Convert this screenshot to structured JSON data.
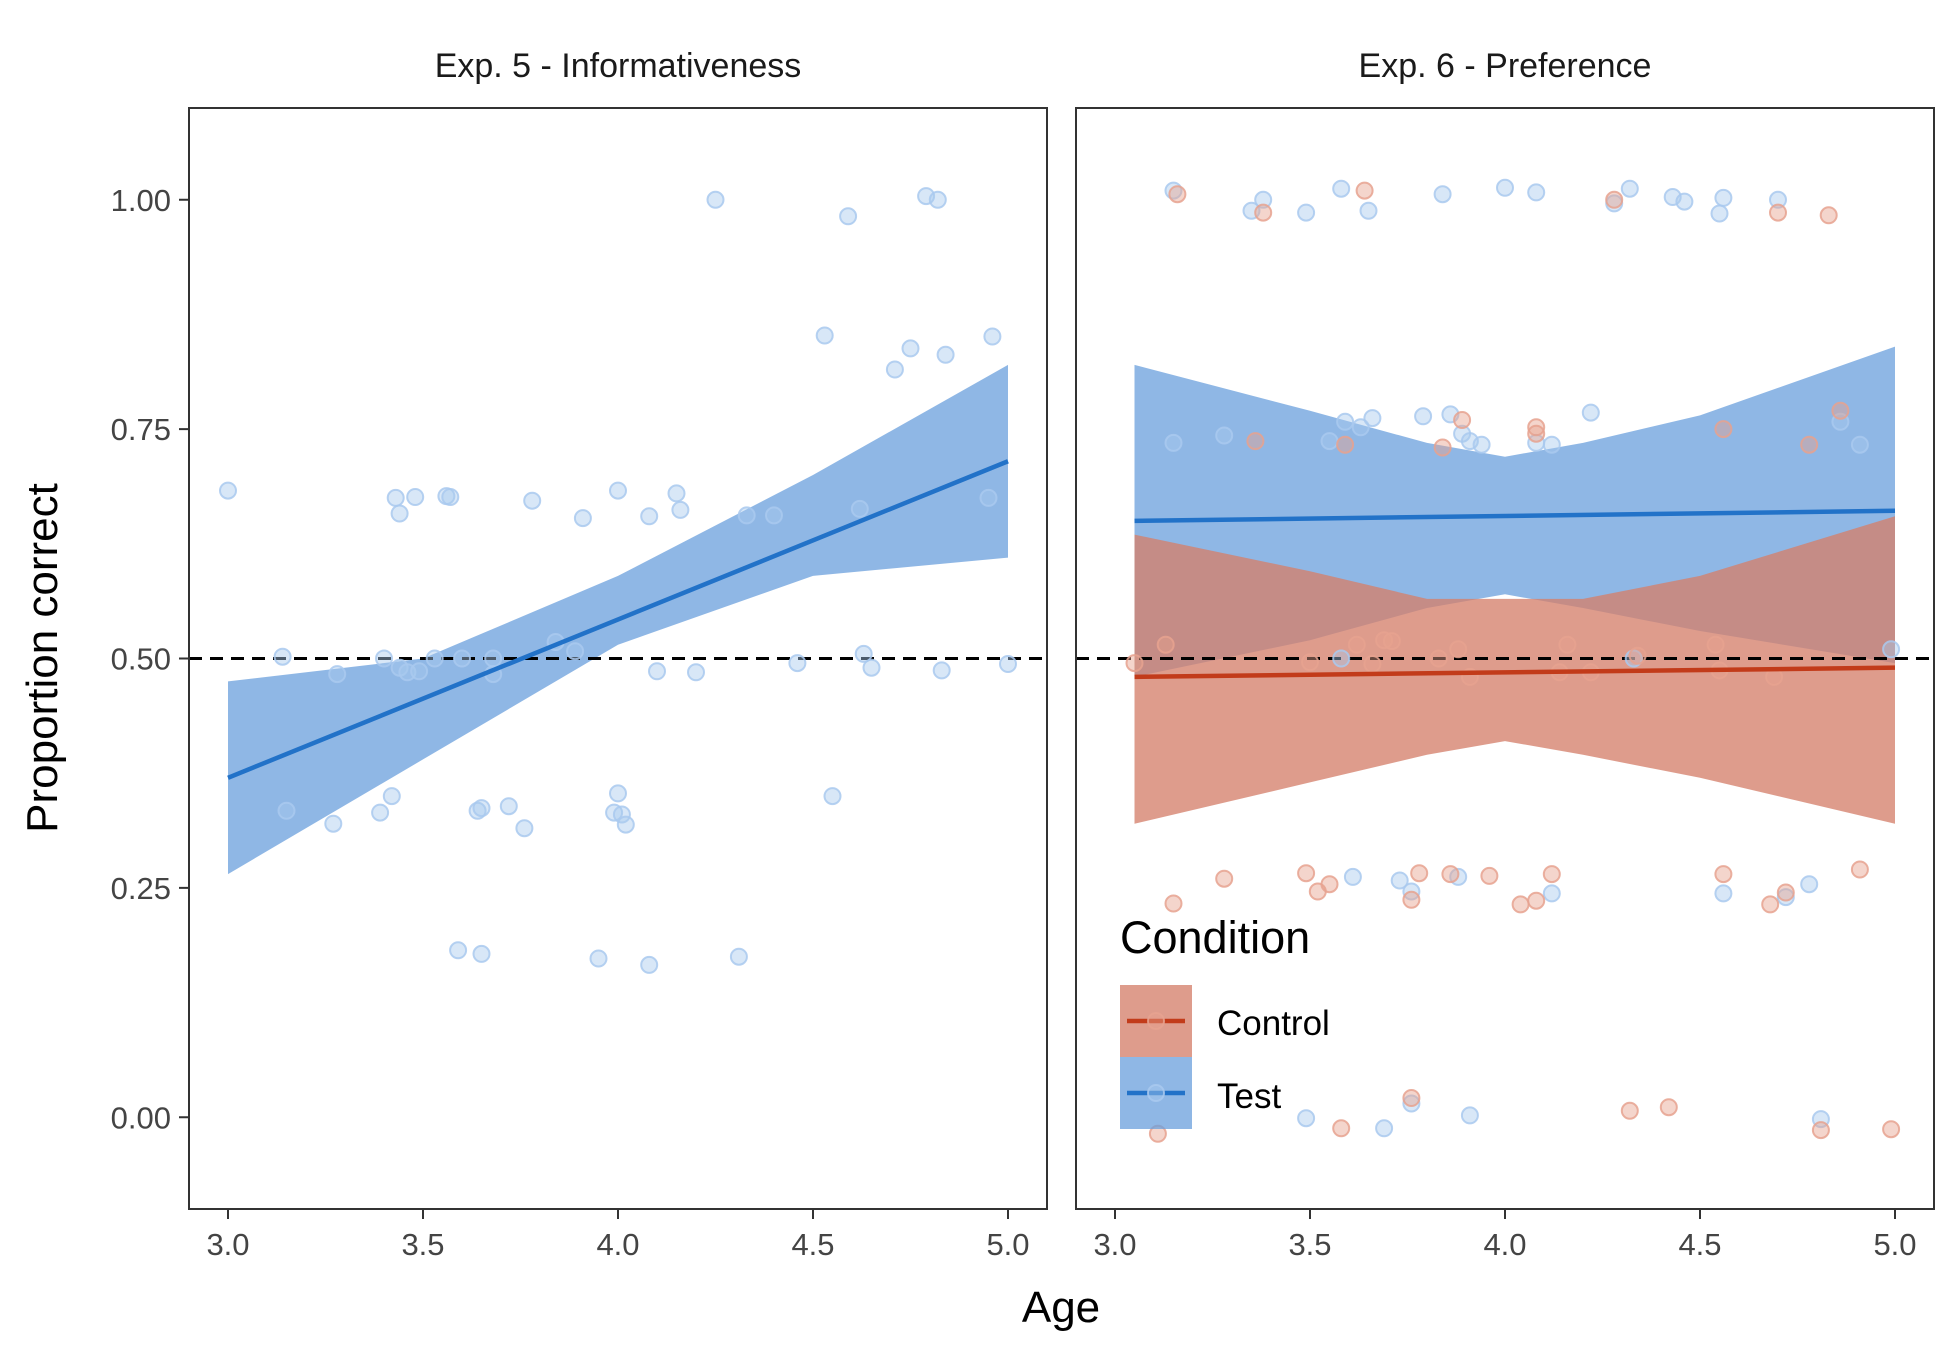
{
  "chart_data": {
    "type": "scatter",
    "xlabel": "Age",
    "ylabel": "Proportion correct",
    "xlim": [
      2.9,
      5.1
    ],
    "ylim": [
      -0.1,
      1.1
    ],
    "x_ticks": [
      3.0,
      3.5,
      4.0,
      4.5,
      5.0
    ],
    "x_tick_labels": [
      "3.0",
      "3.5",
      "4.0",
      "4.5",
      "5.0"
    ],
    "y_ticks": [
      0.0,
      0.25,
      0.5,
      0.75,
      1.0
    ],
    "y_tick_labels": [
      "0.00",
      "0.25",
      "0.50",
      "0.75",
      "1.00"
    ],
    "reference_line": {
      "y": 0.5,
      "style": "dashed"
    },
    "legend": {
      "title": "Condition",
      "placement": "bottom-left of right panel",
      "entries": [
        {
          "label": "Control",
          "color": "#C23B1A",
          "fill": "#D5806B"
        },
        {
          "label": "Test",
          "color": "#2272C8",
          "fill": "#6A9FDC"
        }
      ]
    },
    "colors": {
      "Control": {
        "line": "#C23B1A",
        "band": "#D5806B",
        "point": "#E6A28F"
      },
      "Test": {
        "line": "#2272C8",
        "band": "#6A9FDC",
        "point": "#A9C9EE"
      }
    },
    "panels": [
      {
        "title": "Exp. 5 - Informativeness",
        "series": [
          {
            "name": "Test",
            "fit": {
              "x": [
                3.0,
                5.0
              ],
              "y": [
                0.37,
                0.715
              ]
            },
            "band": {
              "x": [
                3.0,
                3.5,
                4.0,
                4.5,
                5.0
              ],
              "lower": [
                0.265,
                0.39,
                0.515,
                0.59,
                0.61
              ],
              "upper": [
                0.475,
                0.5,
                0.59,
                0.7,
                0.82
              ]
            },
            "points": [
              [
                3.0,
                0.683
              ],
              [
                3.14,
                0.502
              ],
              [
                3.15,
                0.334
              ],
              [
                3.27,
                0.32
              ],
              [
                3.28,
                0.483
              ],
              [
                3.39,
                0.332
              ],
              [
                3.4,
                0.5
              ],
              [
                3.42,
                0.35
              ],
              [
                3.43,
                0.675
              ],
              [
                3.44,
                0.658
              ],
              [
                3.44,
                0.49
              ],
              [
                3.46,
                0.485
              ],
              [
                3.48,
                0.676
              ],
              [
                3.49,
                0.486
              ],
              [
                3.53,
                0.5
              ],
              [
                3.56,
                0.677
              ],
              [
                3.57,
                0.676
              ],
              [
                3.59,
                0.182
              ],
              [
                3.6,
                0.5
              ],
              [
                3.64,
                0.334
              ],
              [
                3.65,
                0.178
              ],
              [
                3.65,
                0.337
              ],
              [
                3.68,
                0.5
              ],
              [
                3.68,
                0.483
              ],
              [
                3.72,
                0.339
              ],
              [
                3.76,
                0.315
              ],
              [
                3.78,
                0.672
              ],
              [
                3.84,
                0.518
              ],
              [
                3.89,
                0.508
              ],
              [
                3.91,
                0.653
              ],
              [
                3.95,
                0.173
              ],
              [
                3.99,
                0.332
              ],
              [
                4.0,
                0.683
              ],
              [
                4.0,
                0.353
              ],
              [
                4.01,
                0.33
              ],
              [
                4.02,
                0.319
              ],
              [
                4.08,
                0.166
              ],
              [
                4.08,
                0.655
              ],
              [
                4.1,
                0.486
              ],
              [
                4.15,
                0.68
              ],
              [
                4.16,
                0.662
              ],
              [
                4.2,
                0.485
              ],
              [
                4.25,
                1.0
              ],
              [
                4.31,
                0.175
              ],
              [
                4.33,
                0.656
              ],
              [
                4.4,
                0.656
              ],
              [
                4.46,
                0.495
              ],
              [
                4.53,
                0.852
              ],
              [
                4.55,
                0.35
              ],
              [
                4.59,
                0.982
              ],
              [
                4.62,
                0.663
              ],
              [
                4.63,
                0.505
              ],
              [
                4.65,
                0.49
              ],
              [
                4.71,
                0.815
              ],
              [
                4.75,
                0.838
              ],
              [
                4.79,
                1.004
              ],
              [
                4.82,
                1.0
              ],
              [
                4.83,
                0.487
              ],
              [
                4.84,
                0.831
              ],
              [
                4.95,
                0.675
              ],
              [
                4.96,
                0.851
              ],
              [
                5.0,
                0.494
              ]
            ]
          }
        ]
      },
      {
        "title": "Exp. 6 - Preference",
        "series": [
          {
            "name": "Test",
            "fit": {
              "x": [
                3.05,
                5.0
              ],
              "y": [
                0.65,
                0.661
              ]
            },
            "band": {
              "x": [
                3.05,
                3.5,
                3.8,
                4.0,
                4.2,
                4.5,
                5.0
              ],
              "lower": [
                0.48,
                0.52,
                0.555,
                0.57,
                0.555,
                0.53,
                0.495
              ],
              "upper": [
                0.82,
                0.77,
                0.735,
                0.72,
                0.735,
                0.765,
                0.84
              ]
            },
            "points": [
              [
                3.15,
                1.01
              ],
              [
                3.15,
                0.735
              ],
              [
                3.28,
                0.743
              ],
              [
                3.35,
                0.988
              ],
              [
                3.38,
                1.0
              ],
              [
                3.49,
                0.986
              ],
              [
                3.55,
                0.737
              ],
              [
                3.58,
                1.012
              ],
              [
                3.58,
                0.5
              ],
              [
                3.59,
                0.758
              ],
              [
                3.63,
                0.752
              ],
              [
                3.65,
                0.988
              ],
              [
                3.66,
                0.762
              ],
              [
                3.76,
                0.015
              ],
              [
                3.76,
                0.246
              ],
              [
                3.79,
                0.764
              ],
              [
                3.84,
                1.006
              ],
              [
                3.86,
                0.766
              ],
              [
                3.89,
                0.745
              ],
              [
                3.91,
                0.737
              ],
              [
                3.94,
                0.733
              ],
              [
                4.0,
                1.013
              ],
              [
                4.08,
                1.008
              ],
              [
                4.08,
                0.735
              ],
              [
                4.12,
                0.733
              ],
              [
                4.12,
                0.244
              ],
              [
                4.22,
                0.768
              ],
              [
                4.28,
                0.996
              ],
              [
                4.32,
                1.012
              ],
              [
                4.43,
                1.003
              ],
              [
                4.46,
                0.998
              ],
              [
                4.55,
                0.985
              ],
              [
                4.56,
                1.002
              ],
              [
                4.56,
                0.244
              ],
              [
                4.7,
                1.0
              ],
              [
                4.72,
                0.24
              ],
              [
                4.78,
                0.254
              ],
              [
                4.81,
                -0.002
              ],
              [
                4.86,
                0.758
              ],
              [
                4.91,
                0.733
              ],
              [
                4.99,
                0.51
              ],
              [
                3.49,
                -0.001
              ],
              [
                3.61,
                0.262
              ],
              [
                3.69,
                -0.012
              ],
              [
                3.73,
                0.258
              ],
              [
                3.88,
                0.262
              ],
              [
                3.91,
                0.002
              ],
              [
                4.33,
                0.5
              ]
            ]
          },
          {
            "name": "Control",
            "fit": {
              "x": [
                3.05,
                5.0
              ],
              "y": [
                0.48,
                0.49
              ]
            },
            "band": {
              "x": [
                3.05,
                3.5,
                3.8,
                4.0,
                4.2,
                4.5,
                5.0
              ],
              "lower": [
                0.32,
                0.365,
                0.395,
                0.41,
                0.395,
                0.37,
                0.32
              ],
              "upper": [
                0.635,
                0.595,
                0.565,
                0.565,
                0.565,
                0.59,
                0.655
              ]
            },
            "points": [
              [
                3.05,
                0.495
              ],
              [
                3.11,
                -0.018
              ],
              [
                3.13,
                0.515
              ],
              [
                3.15,
                0.233
              ],
              [
                3.16,
                1.006
              ],
              [
                3.28,
                0.26
              ],
              [
                3.36,
                0.737
              ],
              [
                3.38,
                0.986
              ],
              [
                3.49,
                0.266
              ],
              [
                3.5,
                0.496
              ],
              [
                3.52,
                0.246
              ],
              [
                3.55,
                0.254
              ],
              [
                3.58,
                -0.012
              ],
              [
                3.59,
                0.733
              ],
              [
                3.62,
                0.515
              ],
              [
                3.64,
                1.01
              ],
              [
                3.66,
                0.494
              ],
              [
                3.69,
                0.52
              ],
              [
                3.71,
                0.519
              ],
              [
                3.76,
                0.021
              ],
              [
                3.76,
                0.237
              ],
              [
                3.78,
                0.266
              ],
              [
                3.83,
                0.5
              ],
              [
                3.84,
                0.73
              ],
              [
                3.86,
                0.265
              ],
              [
                3.88,
                0.51
              ],
              [
                3.89,
                0.76
              ],
              [
                3.91,
                0.48
              ],
              [
                3.96,
                0.263
              ],
              [
                4.04,
                0.232
              ],
              [
                4.08,
                0.236
              ],
              [
                4.08,
                0.745
              ],
              [
                4.08,
                0.752
              ],
              [
                4.12,
                0.265
              ],
              [
                4.14,
                0.485
              ],
              [
                4.16,
                0.515
              ],
              [
                4.22,
                0.485
              ],
              [
                4.28,
                1.0
              ],
              [
                4.32,
                0.007
              ],
              [
                4.34,
                0.503
              ],
              [
                4.42,
                0.011
              ],
              [
                4.54,
                0.515
              ],
              [
                4.55,
                0.487
              ],
              [
                4.56,
                0.265
              ],
              [
                4.56,
                0.75
              ],
              [
                4.68,
                0.232
              ],
              [
                4.69,
                0.48
              ],
              [
                4.7,
                0.986
              ],
              [
                4.72,
                0.245
              ],
              [
                4.78,
                0.733
              ],
              [
                4.81,
                -0.014
              ],
              [
                4.83,
                0.983
              ],
              [
                4.86,
                0.77
              ],
              [
                4.91,
                0.27
              ],
              [
                4.99,
                -0.013
              ]
            ]
          }
        ]
      }
    ]
  }
}
